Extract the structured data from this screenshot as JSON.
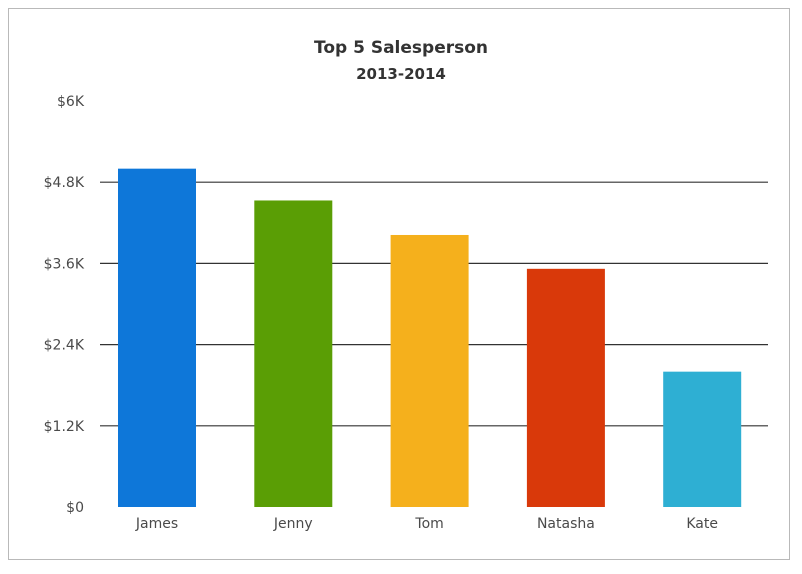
{
  "chart_data": {
    "type": "bar",
    "title": "Top 5 Salesperson",
    "subtitle": "2013-2014",
    "xlabel": "",
    "ylabel": "",
    "categories": [
      "James",
      "Jenny",
      "Tom",
      "Natasha",
      "Kate"
    ],
    "values": [
      5000,
      4530,
      4020,
      3520,
      2000
    ],
    "colors": [
      "#0e77d9",
      "#5a9e05",
      "#f5b01c",
      "#d9390a",
      "#2eafd3"
    ],
    "ylim": [
      0,
      6000
    ],
    "yticks": [
      {
        "value": 0,
        "label": "$0"
      },
      {
        "value": 1200,
        "label": "$1.2K"
      },
      {
        "value": 2400,
        "label": "$2.4K"
      },
      {
        "value": 3600,
        "label": "$3.6K"
      },
      {
        "value": 4800,
        "label": "$4.8K"
      },
      {
        "value": 6000,
        "label": "$6K"
      }
    ],
    "grid": true,
    "legend": "none"
  }
}
